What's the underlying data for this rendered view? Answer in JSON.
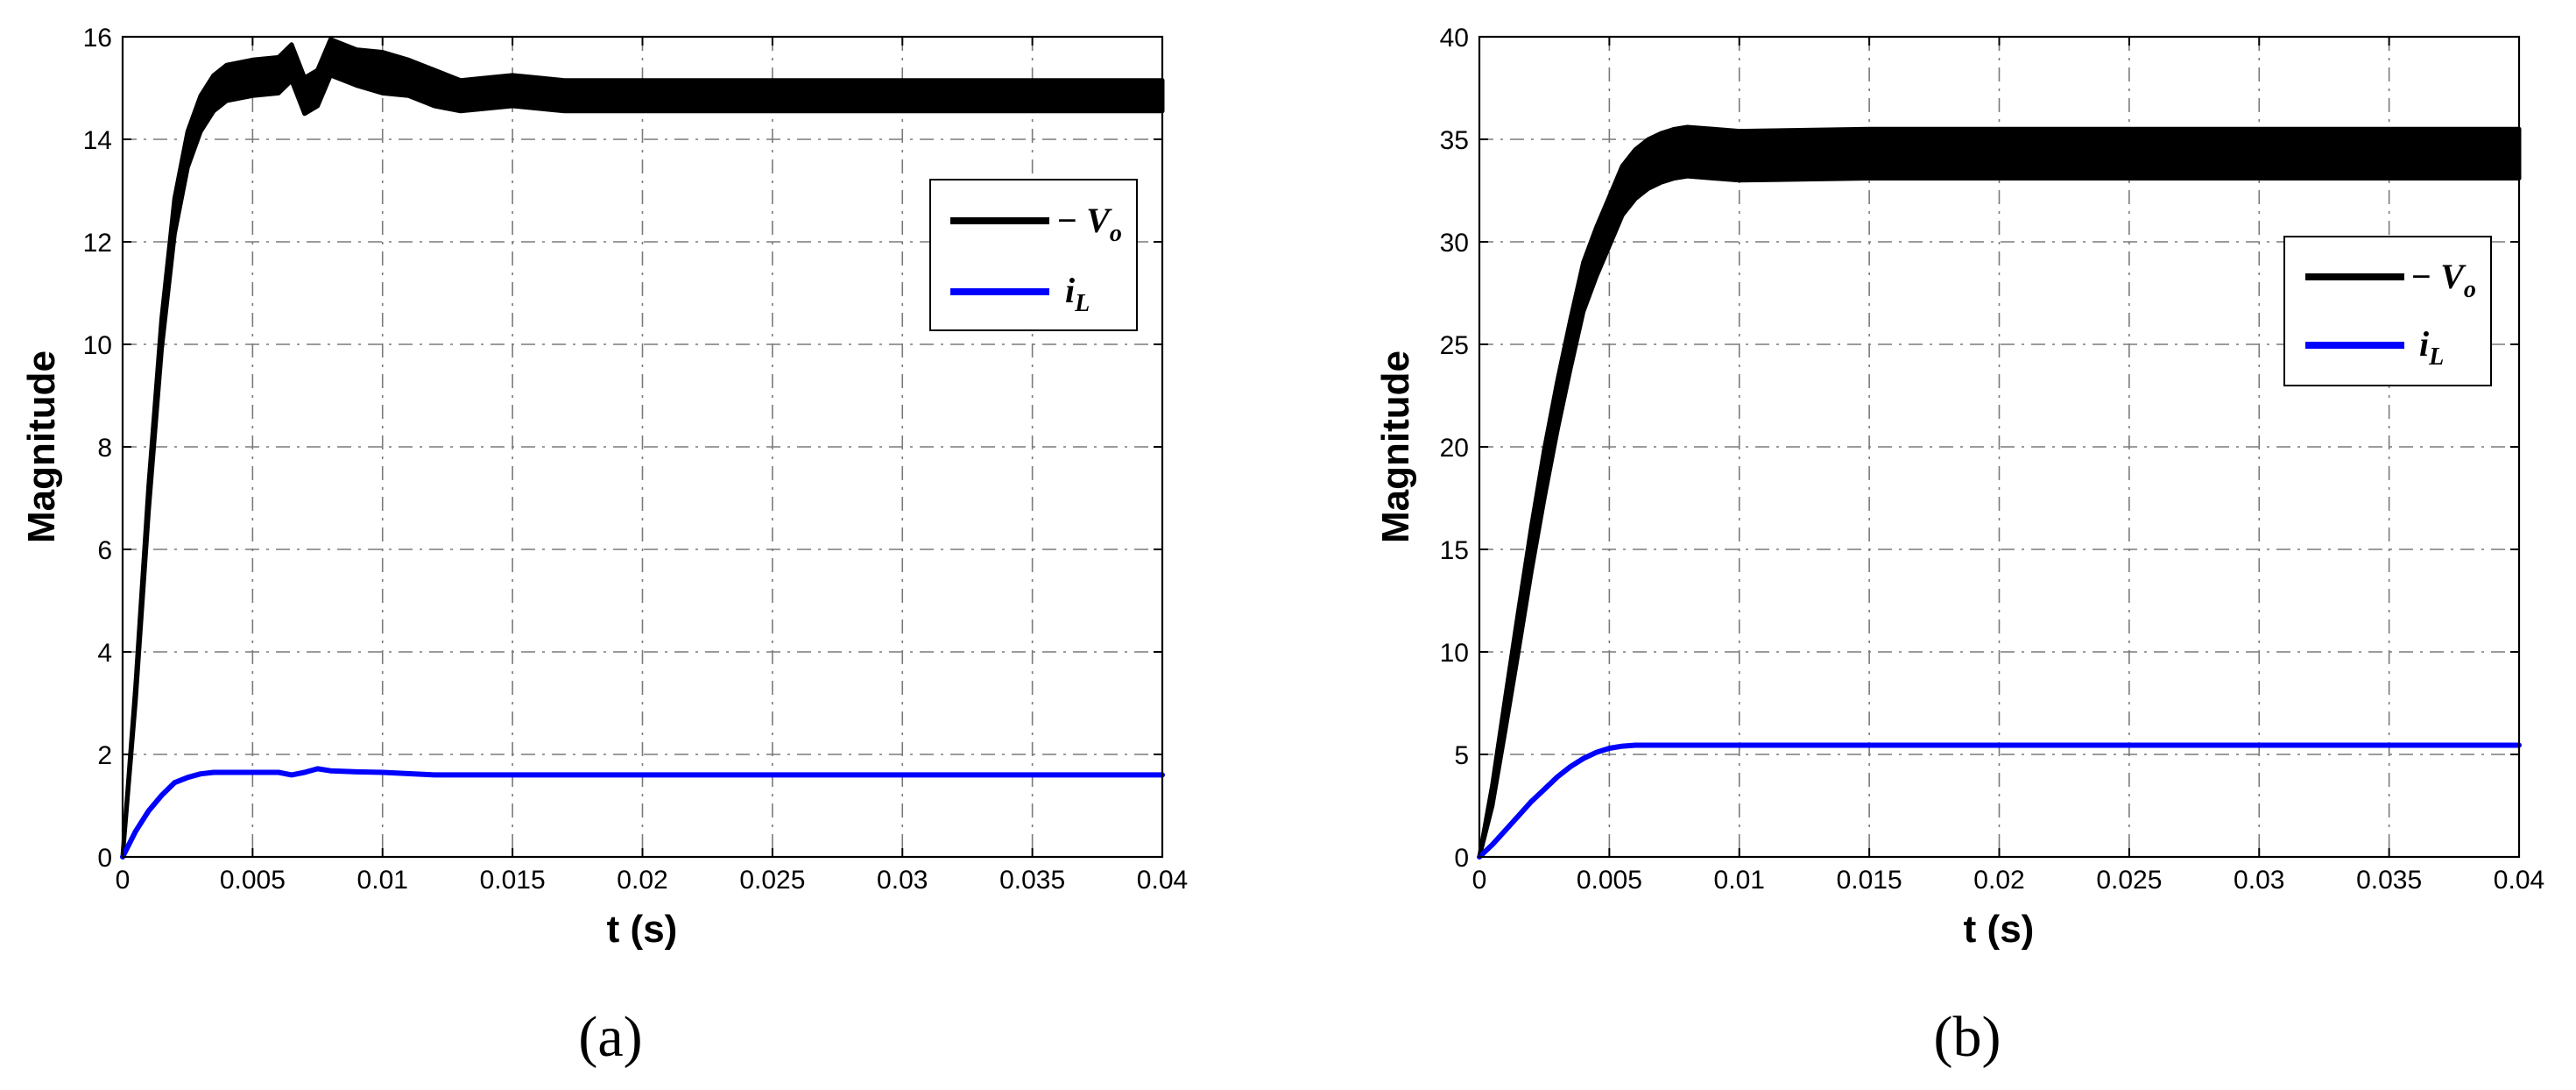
{
  "chart_data": [
    {
      "type": "line",
      "caption": "(a)",
      "xlabel": "t (s)",
      "ylabel": "Magnitude",
      "xlim": [
        0,
        0.04
      ],
      "ylim": [
        0,
        16
      ],
      "xticks": [
        "0",
        "0.005",
        "0.01",
        "0.015",
        "0.02",
        "0.025",
        "0.03",
        "0.035",
        "0.04"
      ],
      "yticks": [
        "0",
        "2",
        "4",
        "6",
        "8",
        "10",
        "12",
        "14",
        "16"
      ],
      "grid": true,
      "legend_position": "right",
      "series": [
        {
          "legend_text": "− V",
          "legend_sub": "o",
          "color": "#000000",
          "band": true,
          "x": [
            0,
            0.0005,
            0.001,
            0.0015,
            0.002,
            0.0025,
            0.003,
            0.0035,
            0.004,
            0.005,
            0.006,
            0.0065,
            0.007,
            0.0075,
            0.008,
            0.009,
            0.01,
            0.011,
            0.012,
            0.013,
            0.014,
            0.015,
            0.016,
            0.017,
            0.02,
            0.025,
            0.03,
            0.035,
            0.04
          ],
          "y": [
            0,
            3.2,
            7.0,
            10.2,
            12.5,
            13.8,
            14.5,
            14.9,
            15.1,
            15.2,
            15.25,
            15.5,
            14.85,
            15.0,
            15.6,
            15.4,
            15.3,
            15.2,
            15.0,
            14.85,
            14.9,
            14.95,
            14.9,
            14.85,
            14.85,
            14.85,
            14.85,
            14.85,
            14.85
          ],
          "ripple": [
            0,
            0.15,
            0.25,
            0.3,
            0.35,
            0.35,
            0.35,
            0.35,
            0.35,
            0.35,
            0.35,
            0.35,
            0.35,
            0.35,
            0.35,
            0.35,
            0.4,
            0.35,
            0.35,
            0.3,
            0.3,
            0.3,
            0.3,
            0.3,
            0.3,
            0.3,
            0.3,
            0.3,
            0.3
          ]
        },
        {
          "legend_text": "i",
          "legend_sub": "L",
          "color": "#0000ff",
          "band": false,
          "x": [
            0,
            0.0005,
            0.001,
            0.0015,
            0.002,
            0.0025,
            0.003,
            0.0035,
            0.004,
            0.005,
            0.006,
            0.0065,
            0.007,
            0.0075,
            0.008,
            0.009,
            0.01,
            0.012,
            0.015,
            0.02,
            0.03,
            0.04
          ],
          "y": [
            0,
            0.5,
            0.9,
            1.2,
            1.45,
            1.55,
            1.62,
            1.65,
            1.65,
            1.65,
            1.65,
            1.6,
            1.65,
            1.72,
            1.68,
            1.66,
            1.65,
            1.6,
            1.6,
            1.6,
            1.6,
            1.6
          ]
        }
      ]
    },
    {
      "type": "line",
      "caption": "(b)",
      "xlabel": "t (s)",
      "ylabel": "Magnitude",
      "xlim": [
        0,
        0.04
      ],
      "ylim": [
        0,
        40
      ],
      "xticks": [
        "0",
        "0.005",
        "0.01",
        "0.015",
        "0.02",
        "0.025",
        "0.03",
        "0.035",
        "0.04"
      ],
      "yticks": [
        "0",
        "5",
        "10",
        "15",
        "20",
        "25",
        "30",
        "35",
        "40"
      ],
      "grid": true,
      "legend_position": "right",
      "series": [
        {
          "legend_text": "− V",
          "legend_sub": "o",
          "color": "#000000",
          "band": true,
          "x": [
            0,
            0.0005,
            0.001,
            0.0015,
            0.002,
            0.0025,
            0.003,
            0.0035,
            0.004,
            0.0045,
            0.005,
            0.0055,
            0.006,
            0.0065,
            0.007,
            0.0075,
            0.008,
            0.009,
            0.01,
            0.015,
            0.02,
            0.025,
            0.03,
            0.035,
            0.04
          ],
          "y": [
            0,
            3.0,
            7.0,
            11.0,
            15.0,
            18.7,
            22.0,
            25.0,
            27.8,
            29.5,
            31.0,
            32.5,
            33.3,
            33.8,
            34.1,
            34.3,
            34.4,
            34.3,
            34.2,
            34.3,
            34.3,
            34.3,
            34.3,
            34.3,
            34.3
          ],
          "ripple": [
            0,
            0.5,
            0.8,
            1.0,
            1.1,
            1.2,
            1.2,
            1.2,
            1.2,
            1.2,
            1.2,
            1.2,
            1.2,
            1.2,
            1.2,
            1.2,
            1.2,
            1.2,
            1.2,
            1.2,
            1.2,
            1.2,
            1.2,
            1.2,
            1.2
          ]
        },
        {
          "legend_text": "i",
          "legend_sub": "L",
          "color": "#0000ff",
          "band": false,
          "x": [
            0,
            0.0005,
            0.001,
            0.0015,
            0.002,
            0.0025,
            0.003,
            0.0035,
            0.004,
            0.0045,
            0.005,
            0.0055,
            0.006,
            0.007,
            0.01,
            0.02,
            0.03,
            0.04
          ],
          "y": [
            0,
            0.6,
            1.3,
            2.0,
            2.7,
            3.3,
            3.9,
            4.4,
            4.8,
            5.1,
            5.3,
            5.4,
            5.45,
            5.45,
            5.45,
            5.45,
            5.45,
            5.45
          ]
        }
      ]
    }
  ]
}
